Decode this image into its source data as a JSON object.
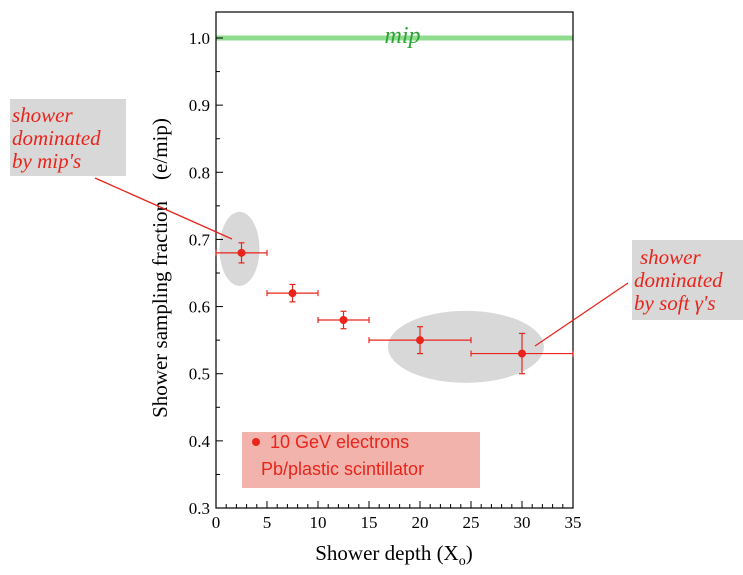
{
  "chart_data": {
    "type": "scatter",
    "xlabel": "Shower depth (X",
    "xlabel_sub": "o",
    "xlabel_end": ")",
    "ylabel": "Shower sampling fraction    (e/mip)",
    "xlim": [
      0,
      35
    ],
    "ylim": [
      0.3,
      1.05
    ],
    "xticks": [
      0,
      5,
      10,
      15,
      20,
      25,
      30,
      35
    ],
    "yticks": [
      "0.3",
      "0.4",
      "0.5",
      "0.6",
      "0.7",
      "0.8",
      "0.9",
      "1.0"
    ],
    "grid": false,
    "reference_line": {
      "label": "mip",
      "y": 1.0,
      "color": "#8fdc8f"
    },
    "series": [
      {
        "marker_color": "#e8241b",
        "points": [
          {
            "x": 2.5,
            "y": 0.68,
            "x_lo": 0,
            "x_hi": 5,
            "y_err": 0.015
          },
          {
            "x": 7.5,
            "y": 0.62,
            "x_lo": 5,
            "x_hi": 10,
            "y_err": 0.013
          },
          {
            "x": 12.5,
            "y": 0.58,
            "x_lo": 10,
            "x_hi": 15,
            "y_err": 0.013
          },
          {
            "x": 20,
            "y": 0.55,
            "x_lo": 15,
            "x_hi": 25,
            "y_err": 0.02
          },
          {
            "x": 30,
            "y": 0.53,
            "x_lo": 25,
            "x_hi": 35,
            "y_err": 0.03
          }
        ]
      }
    ],
    "legend": {
      "position": "bottom-left",
      "lines": [
        "10 GeV electrons",
        "Pb/plastic scintillator"
      ]
    },
    "annotations": [
      {
        "lines": [
          "shower",
          "dominated",
          "by mip's"
        ],
        "target_x": 2.5,
        "target_y": 0.68
      },
      {
        "lines": [
          "shower",
          "dominated",
          "by soft γ's"
        ],
        "target_x": 30,
        "target_y": 0.53
      }
    ]
  }
}
